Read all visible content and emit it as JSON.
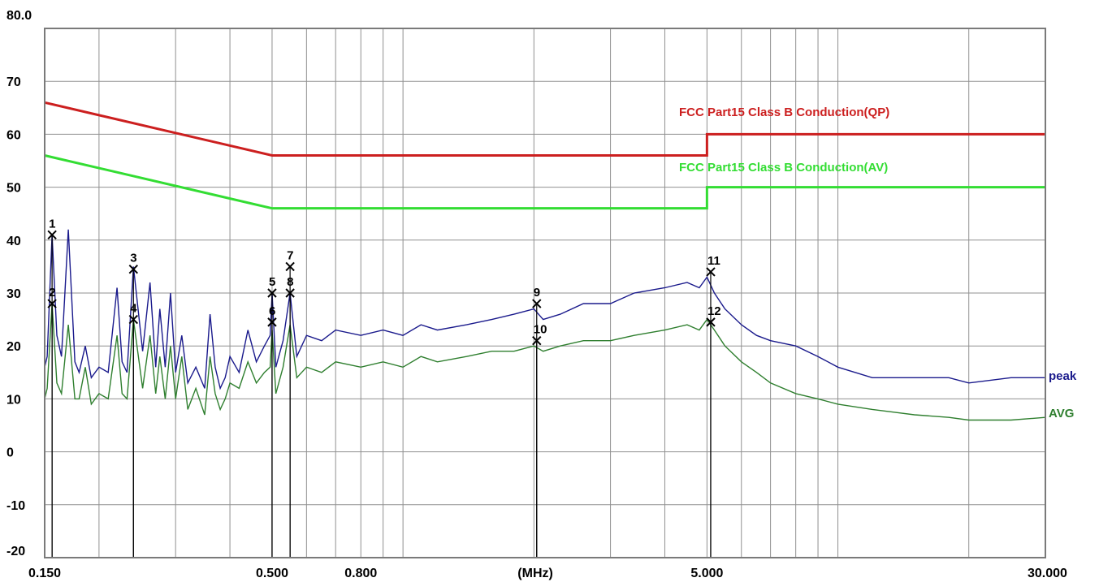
{
  "chart_data": {
    "type": "line",
    "x_scale": "log",
    "xlim": [
      0.15,
      30
    ],
    "ylim": [
      -20,
      80
    ],
    "grid": true,
    "x_unit_label": "(MHz)",
    "x_tick_labels": [
      {
        "x": 0.15,
        "label": "0.150"
      },
      {
        "x": 0.5,
        "label": "0.500"
      },
      {
        "x": 0.8,
        "label": "0.800"
      },
      {
        "x": 2.0,
        "label": "(MHz)"
      },
      {
        "x": 5.0,
        "label": "5.000"
      },
      {
        "x": 30.0,
        "label": "30.000"
      }
    ],
    "x_grid": [
      0.2,
      0.3,
      0.4,
      0.5,
      0.6,
      0.7,
      0.8,
      0.9,
      1,
      2,
      3,
      4,
      5,
      6,
      7,
      8,
      9,
      10,
      20
    ],
    "y_ticks": [
      {
        "y": 80,
        "label": "80.0"
      },
      {
        "y": 70,
        "label": "70"
      },
      {
        "y": 60,
        "label": "60"
      },
      {
        "y": 50,
        "label": "50"
      },
      {
        "y": 40,
        "label": "40"
      },
      {
        "y": 30,
        "label": "30"
      },
      {
        "y": 20,
        "label": "20"
      },
      {
        "y": 10,
        "label": "10"
      },
      {
        "y": 0,
        "label": "0"
      },
      {
        "y": -10,
        "label": "-10"
      },
      {
        "y": -20,
        "label": "-20"
      }
    ],
    "limits": [
      {
        "name": "FCC Part15 Class B Conduction(QP)",
        "color": "#cc1f1f",
        "x": [
          0.15,
          0.5,
          5.0,
          5.0,
          30.0
        ],
        "y": [
          66,
          56,
          56,
          60,
          60
        ]
      },
      {
        "name": "FCC Part15 Class B Conduction(AV)",
        "color": "#33dd33",
        "x": [
          0.15,
          0.5,
          5.0,
          5.0,
          30.0
        ],
        "y": [
          56,
          46,
          46,
          50,
          50
        ]
      }
    ],
    "series": [
      {
        "name": "peak",
        "color": "#1a1a8c",
        "x": [
          0.15,
          0.152,
          0.156,
          0.16,
          0.164,
          0.17,
          0.176,
          0.18,
          0.186,
          0.192,
          0.2,
          0.21,
          0.22,
          0.226,
          0.232,
          0.24,
          0.252,
          0.262,
          0.27,
          0.276,
          0.284,
          0.292,
          0.3,
          0.31,
          0.32,
          0.334,
          0.35,
          0.36,
          0.37,
          0.38,
          0.39,
          0.4,
          0.42,
          0.44,
          0.46,
          0.48,
          0.495,
          0.5,
          0.51,
          0.53,
          0.55,
          0.57,
          0.6,
          0.65,
          0.7,
          0.8,
          0.9,
          1.0,
          1.1,
          1.2,
          1.4,
          1.6,
          1.8,
          2.0,
          2.1,
          2.3,
          2.6,
          3.0,
          3.4,
          4.0,
          4.5,
          4.8,
          5.0,
          5.2,
          5.5,
          6.0,
          6.5,
          7.0,
          8.0,
          9.0,
          10.0,
          12.0,
          15.0,
          18.0,
          20.0,
          25.0,
          30.0
        ],
        "y": [
          16,
          18,
          41,
          22,
          18,
          42,
          17,
          15,
          20,
          14,
          16,
          15,
          31,
          17,
          15,
          35,
          19,
          32,
          16,
          27,
          16,
          30,
          15,
          22,
          13,
          16,
          12,
          26,
          16,
          12,
          14,
          18,
          15,
          23,
          17,
          20,
          22,
          30,
          16,
          21,
          30,
          18,
          22,
          21,
          23,
          22,
          23,
          22,
          24,
          23,
          24,
          25,
          26,
          27,
          25,
          26,
          28,
          28,
          30,
          31,
          32,
          31,
          33,
          30,
          27,
          24,
          22,
          21,
          20,
          18,
          16,
          14,
          14,
          14,
          13,
          14,
          14
        ]
      },
      {
        "name": "AVG",
        "color": "#2f7f2f",
        "x": [
          0.15,
          0.152,
          0.156,
          0.16,
          0.164,
          0.17,
          0.176,
          0.18,
          0.186,
          0.192,
          0.2,
          0.21,
          0.22,
          0.226,
          0.232,
          0.24,
          0.252,
          0.262,
          0.27,
          0.276,
          0.284,
          0.292,
          0.3,
          0.31,
          0.32,
          0.334,
          0.35,
          0.36,
          0.37,
          0.38,
          0.39,
          0.4,
          0.42,
          0.44,
          0.46,
          0.48,
          0.495,
          0.5,
          0.51,
          0.53,
          0.55,
          0.57,
          0.6,
          0.65,
          0.7,
          0.8,
          0.9,
          1.0,
          1.1,
          1.2,
          1.4,
          1.6,
          1.8,
          2.0,
          2.1,
          2.3,
          2.6,
          3.0,
          3.4,
          4.0,
          4.5,
          4.8,
          5.0,
          5.2,
          5.5,
          6.0,
          6.5,
          7.0,
          8.0,
          9.0,
          10.0,
          12.0,
          15.0,
          18.0,
          20.0,
          25.0,
          30.0
        ],
        "y": [
          10,
          12,
          28,
          13,
          11,
          24,
          10,
          10,
          16,
          9,
          11,
          10,
          22,
          11,
          10,
          25,
          12,
          22,
          11,
          18,
          10,
          20,
          10,
          18,
          8,
          12,
          7,
          18,
          11,
          8,
          10,
          13,
          12,
          17,
          13,
          15,
          16,
          23,
          11,
          16,
          24,
          14,
          16,
          15,
          17,
          16,
          17,
          16,
          18,
          17,
          18,
          19,
          19,
          20,
          19,
          20,
          21,
          21,
          22,
          23,
          24,
          23,
          25,
          23,
          20,
          17,
          15,
          13,
          11,
          10,
          9,
          8,
          7,
          6.5,
          6,
          6,
          6.5
        ]
      }
    ],
    "markers": [
      {
        "label": "1",
        "x": 0.156,
        "y": 41
      },
      {
        "label": "2",
        "x": 0.156,
        "y": 28
      },
      {
        "label": "3",
        "x": 0.24,
        "y": 34.5
      },
      {
        "label": "4",
        "x": 0.24,
        "y": 25
      },
      {
        "label": "5",
        "x": 0.5,
        "y": 30
      },
      {
        "label": "6",
        "x": 0.5,
        "y": 24.5
      },
      {
        "label": "7",
        "x": 0.55,
        "y": 35
      },
      {
        "label": "8",
        "x": 0.55,
        "y": 30
      },
      {
        "label": "9",
        "x": 2.03,
        "y": 28
      },
      {
        "label": "10",
        "x": 2.03,
        "y": 21
      },
      {
        "label": "11",
        "x": 5.1,
        "y": 34
      },
      {
        "label": "12",
        "x": 5.1,
        "y": 24.5
      }
    ]
  }
}
